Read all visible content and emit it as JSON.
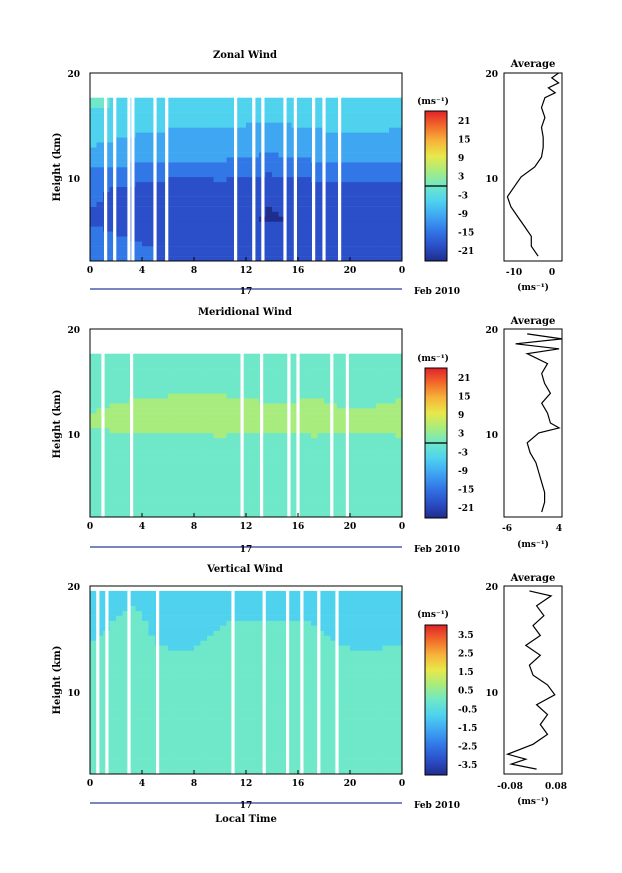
{
  "chart_data": [
    {
      "type": "heatmap",
      "title": "Zonal Wind",
      "ylabel": "Height (km)",
      "xticks": [
        "0",
        "4",
        "8",
        "12",
        "16",
        "20",
        "0"
      ],
      "yticks": [
        "10",
        "20"
      ],
      "ylim": [
        1,
        20
      ],
      "xlim": [
        0,
        24
      ],
      "day_label": "17",
      "date_label": "Feb 2010",
      "colorbar": {
        "unit": "(ms⁻¹)",
        "ticks": [
          "21",
          "15",
          "9",
          "3",
          "-3",
          "-9",
          "-15",
          "-21"
        ],
        "range": [
          -24,
          24
        ]
      },
      "gaps_hours": [
        1.2,
        1.9,
        3.0,
        3.3,
        5.0,
        5.9,
        11.2,
        12.6,
        13.3,
        15.0,
        15.8,
        17.2,
        18.0,
        19.2
      ],
      "profile_rows": [
        {
          "h": 2.0,
          "v": [
            -15,
            -16,
            -18,
            -17,
            -19,
            -18,
            -17,
            -18
          ]
        },
        {
          "h": 5.0,
          "v": [
            -17,
            -19,
            -21,
            -20,
            -22,
            -21,
            -20,
            -21
          ]
        },
        {
          "h": 8.0,
          "v": [
            -16,
            -18,
            -20,
            -19,
            -21,
            -19,
            -18,
            -19
          ]
        },
        {
          "h": 11.0,
          "v": [
            -10,
            -11,
            -12,
            -12,
            -13,
            -12,
            -11,
            -12
          ]
        },
        {
          "h": 13.0,
          "v": [
            -6,
            -8,
            -9,
            -9,
            -10,
            -9,
            -8,
            -9
          ]
        },
        {
          "h": 15.0,
          "v": [
            -3,
            -5,
            -6,
            -6,
            -7,
            -6,
            -5,
            -6
          ]
        },
        {
          "h": 16.5,
          "v": [
            -2,
            -3,
            -4,
            -4,
            -4,
            -3,
            -3,
            -4
          ]
        }
      ],
      "coverage_top_km": 17.5,
      "average": {
        "title": "Average",
        "xlabel": "(ms⁻¹)",
        "xticks": [
          "-10",
          "0"
        ],
        "xlim": [
          -14,
          3
        ],
        "h": [
          1.5,
          2.5,
          3.5,
          4.5,
          5.5,
          6.5,
          7.5,
          8.5,
          9.5,
          10.5,
          11.5,
          12.5,
          13.5,
          14.5,
          15.5,
          16.5,
          17.5,
          18.0,
          18.5,
          19.0,
          19.5,
          20.0
        ],
        "x": [
          -4,
          -6,
          -6,
          -8,
          -10,
          -12,
          -13,
          -11,
          -9,
          -5,
          -3,
          -2.5,
          -2.5,
          -3,
          -2,
          -3,
          -2,
          1,
          -1,
          2,
          0,
          2
        ]
      }
    },
    {
      "type": "heatmap",
      "title": "Meridional Wind",
      "ylabel": "Height (km)",
      "xticks": [
        "0",
        "4",
        "8",
        "12",
        "16",
        "20",
        "0"
      ],
      "yticks": [
        "10",
        "20"
      ],
      "ylim": [
        1,
        20
      ],
      "xlim": [
        0,
        24
      ],
      "day_label": "17",
      "date_label": "Feb 2010",
      "colorbar": {
        "unit": "(ms⁻¹)",
        "ticks": [
          "21",
          "15",
          "9",
          "3",
          "-3",
          "-9",
          "-15",
          "-21"
        ],
        "range": [
          -24,
          24
        ]
      },
      "gaps_hours": [
        1.0,
        3.2,
        11.7,
        13.2,
        15.3,
        16.0,
        18.6,
        19.8
      ],
      "profile_rows": [
        {
          "h": 2.0,
          "v": [
            -1,
            0,
            0,
            1,
            0,
            1,
            0,
            1
          ]
        },
        {
          "h": 5.0,
          "v": [
            0,
            1,
            1,
            1,
            0,
            1,
            1,
            0
          ]
        },
        {
          "h": 8.0,
          "v": [
            -1,
            0,
            -1,
            0,
            -1,
            0,
            -1,
            0
          ]
        },
        {
          "h": 10.0,
          "v": [
            3,
            4,
            5,
            5,
            4,
            5,
            4,
            5
          ]
        },
        {
          "h": 12.0,
          "v": [
            2,
            3,
            3,
            4,
            3,
            3,
            2,
            3
          ]
        },
        {
          "h": 14.0,
          "v": [
            1,
            1,
            2,
            1,
            0,
            1,
            2,
            1
          ]
        },
        {
          "h": 16.0,
          "v": [
            0,
            0,
            1,
            0,
            0,
            1,
            0,
            0
          ]
        }
      ],
      "coverage_top_km": 17.5,
      "average": {
        "title": "Average",
        "xlabel": "(ms⁻¹)",
        "xticks": [
          "-6",
          "4"
        ],
        "xlim": [
          -6,
          4
        ],
        "h": [
          1.5,
          2.5,
          3.5,
          4.5,
          5.5,
          6.5,
          7.5,
          8.5,
          9.5,
          10.0,
          10.5,
          11.5,
          12.5,
          13.5,
          14.5,
          15.5,
          16.5,
          17.5,
          18.0,
          18.5,
          19.0,
          19.5
        ],
        "x": [
          0.5,
          1,
          1,
          0.5,
          0,
          -0.5,
          -1.5,
          -2,
          0,
          3.5,
          2,
          1.5,
          0.5,
          2,
          1,
          0.5,
          1.5,
          -2,
          3.5,
          -4,
          4,
          -2
        ]
      }
    },
    {
      "type": "heatmap",
      "title": "Vertical Wind",
      "ylabel": "Height (km)",
      "xlabel": "Local Time",
      "xticks": [
        "0",
        "4",
        "8",
        "12",
        "16",
        "20",
        "0"
      ],
      "yticks": [
        "10",
        "20"
      ],
      "ylim": [
        1,
        20
      ],
      "xlim": [
        0,
        24
      ],
      "day_label": "17",
      "date_label": "Feb 2010",
      "colorbar": {
        "unit": "(ms⁻¹)",
        "ticks": [
          "3.5",
          "2.5",
          "1.5",
          "0.5",
          "-0.5",
          "-1.5",
          "-2.5",
          "-3.5"
        ],
        "range": [
          -4,
          4
        ]
      },
      "gaps_hours": [
        0.6,
        1.3,
        3.0,
        5.2,
        11.0,
        13.4,
        15.2,
        16.3,
        17.6,
        19.0
      ],
      "profile_rows": [
        {
          "h": 2.0,
          "v": [
            0.2,
            0.0,
            0.1,
            0.2,
            0.0,
            0.1,
            0.0,
            0.2
          ]
        },
        {
          "h": 6.0,
          "v": [
            0.0,
            -0.2,
            0.1,
            0.0,
            -0.1,
            0.1,
            0.0,
            -0.1
          ]
        },
        {
          "h": 10.0,
          "v": [
            -0.2,
            0.0,
            -0.1,
            0.0,
            0.1,
            -0.1,
            0.0,
            -0.2
          ]
        },
        {
          "h": 14.0,
          "v": [
            -0.4,
            -0.3,
            -0.5,
            -0.3,
            -0.4,
            -0.3,
            -0.5,
            -0.4
          ]
        },
        {
          "h": 18.0,
          "v": [
            -0.5,
            -0.4,
            -0.6,
            -0.5,
            -0.4,
            -0.5,
            -0.6,
            -0.5
          ]
        }
      ],
      "coverage_top_km": 19.5,
      "average": {
        "title": "Average",
        "xlabel": "(ms⁻¹)",
        "xticks": [
          "-0.08",
          "0.08"
        ],
        "xlim": [
          -0.08,
          0.08
        ],
        "h": [
          1.5,
          2.0,
          2.5,
          3.0,
          4.0,
          5.0,
          6.0,
          7.0,
          8.0,
          9.0,
          10.0,
          11.0,
          12.0,
          13.0,
          14.0,
          15.0,
          16.0,
          17.0,
          18.0,
          19.0,
          19.5
        ],
        "x": [
          0.01,
          -0.06,
          -0.02,
          -0.07,
          0.0,
          0.04,
          0.02,
          0.04,
          0.01,
          0.06,
          0.04,
          0.0,
          -0.01,
          0.02,
          -0.02,
          0.02,
          0.0,
          0.03,
          0.01,
          0.05,
          -0.01
        ]
      }
    }
  ],
  "colors": {
    "scale": [
      "#1f2d8c",
      "#2b4fc8",
      "#3277e6",
      "#3fa6f2",
      "#4fd2ee",
      "#6ee8c8",
      "#a8ec7e",
      "#e8e84a",
      "#f6b43a",
      "#f26a2a",
      "#e0222a"
    ]
  }
}
